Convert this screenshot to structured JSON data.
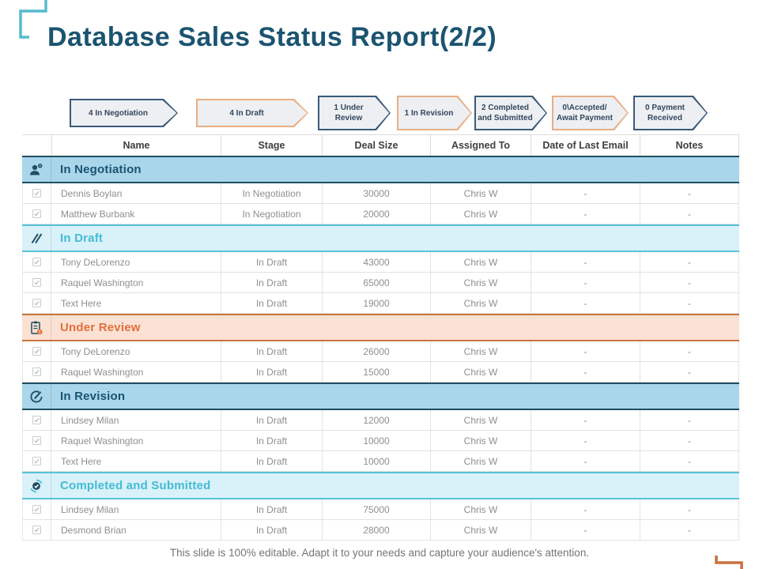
{
  "slide": {
    "title": "Database Sales Status Report(2/2)",
    "footer": "This slide is 100% editable. Adapt it to your needs and capture your audience's attention."
  },
  "pipeline": [
    {
      "label": "4 In Negotiation",
      "border": "navy"
    },
    {
      "label": "4 In Draft",
      "border": "orange"
    },
    {
      "label": "1 Under Review",
      "border": "navy"
    },
    {
      "label": "1 In Revision",
      "border": "orange"
    },
    {
      "label": "2 Completed and Submitted",
      "border": "navy"
    },
    {
      "label": "0\\Accepted/ Await Payment",
      "border": "orange"
    },
    {
      "label": "0 Payment Received",
      "border": "navy"
    }
  ],
  "table": {
    "columns": [
      "Name",
      "Stage",
      "Deal Size",
      "Assigned To",
      "Date of Last Email",
      "Notes"
    ],
    "sections": [
      {
        "title": "In Negotiation",
        "theme": "blue",
        "icon": "users-icon",
        "rows": [
          [
            "Dennis Boylan",
            "In Negotiation",
            "30000",
            "Chris W",
            "-",
            "-"
          ],
          [
            "Matthew Burbank",
            "In Negotiation",
            "20000",
            "Chris W",
            "-",
            "-"
          ]
        ]
      },
      {
        "title": "In Draft",
        "theme": "cyan",
        "icon": "pencil-icon",
        "rows": [
          [
            "Tony DeLorenzo",
            "In Draft",
            "43000",
            "Chris W",
            "-",
            "-"
          ],
          [
            "Raquel Washington",
            "In Draft",
            "65000",
            "Chris W",
            "-",
            "-"
          ],
          [
            "Text Here",
            "In Draft",
            "19000",
            "Chris W",
            "-",
            "-"
          ]
        ]
      },
      {
        "title": "Under Review",
        "theme": "orange",
        "icon": "clipboard-alert-icon",
        "rows": [
          [
            "Tony DeLorenzo",
            "In Draft",
            "26000",
            "Chris W",
            "-",
            "-"
          ],
          [
            "Raquel Washington",
            "In Draft",
            "15000",
            "Chris W",
            "-",
            "-"
          ]
        ]
      },
      {
        "title": "In Revision",
        "theme": "blue",
        "icon": "edit-circle-icon",
        "rows": [
          [
            "Lindsey Milan",
            "In Draft",
            "12000",
            "Chris W",
            "-",
            "-"
          ],
          [
            "Raquel Washington",
            "In Draft",
            "10000",
            "Chris W",
            "-",
            "-"
          ],
          [
            "Text Here",
            "In Draft",
            "10000",
            "Chris W",
            "-",
            "-"
          ]
        ]
      },
      {
        "title": "Completed and Submitted",
        "theme": "cyan",
        "icon": "check-circle-icon",
        "rows": [
          [
            "Lindsey Milan",
            "In Draft",
            "75000",
            "Chris W",
            "-",
            "-"
          ],
          [
            "Desmond Brian",
            "In Draft",
            "28000",
            "Chris W",
            "-",
            "-"
          ]
        ]
      }
    ]
  },
  "colors": {
    "title": "#1B5470",
    "navy_border": "#3A5A7A",
    "orange_border": "#E9AE84",
    "arrow_fill": "#EDEFF2",
    "section_blue_bg": "#A9D6EA",
    "section_cyan_bg": "#D9F1F8",
    "section_orange_bg": "#FAE1D3",
    "section_orange_text": "#E2703C",
    "section_cyan_text": "#43BCD6",
    "deco_top_left": "#56BACD",
    "deco_bottom_right": "#C96F3F"
  }
}
